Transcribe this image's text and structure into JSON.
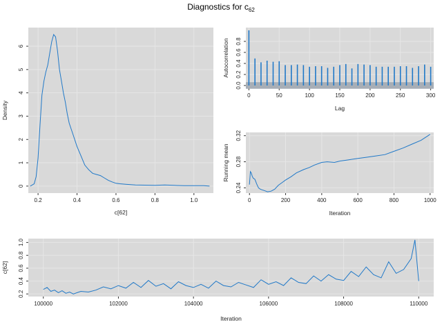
{
  "title": {
    "main": "Diagnostics for c",
    "subscript": "62"
  },
  "colors": {
    "series": "#1f78c8",
    "panel": "#d9d9d9",
    "grid": "#e6e6e6",
    "band": "#9aa3ad"
  },
  "chart_data": [
    {
      "id": "density",
      "type": "line",
      "xlabel": "c[62]",
      "ylabel": "Density",
      "xlim": [
        0.15,
        1.1
      ],
      "ylim": [
        -0.3,
        6.8
      ],
      "xticks": [
        0.2,
        0.4,
        0.6,
        0.8,
        1.0
      ],
      "xtick_labels": [
        "0.2",
        "0.4",
        "0.6",
        "0.8",
        "1.0"
      ],
      "yticks": [
        0,
        1,
        2,
        3,
        4,
        5,
        6
      ],
      "ytick_labels": [
        "0",
        "1",
        "2",
        "3",
        "4",
        "5",
        "6"
      ],
      "x": [
        0.16,
        0.18,
        0.19,
        0.2,
        0.21,
        0.22,
        0.23,
        0.24,
        0.25,
        0.26,
        0.27,
        0.28,
        0.29,
        0.3,
        0.31,
        0.32,
        0.33,
        0.34,
        0.35,
        0.36,
        0.38,
        0.4,
        0.42,
        0.44,
        0.46,
        0.48,
        0.5,
        0.52,
        0.54,
        0.56,
        0.58,
        0.6,
        0.62,
        0.65,
        0.7,
        0.75,
        0.8,
        0.85,
        0.9,
        0.95,
        1.0,
        1.05,
        1.08
      ],
      "y": [
        0.0,
        0.1,
        0.4,
        1.2,
        2.6,
        3.9,
        4.5,
        4.9,
        5.2,
        5.7,
        6.2,
        6.5,
        6.4,
        5.8,
        5.0,
        4.5,
        4.0,
        3.6,
        3.1,
        2.7,
        2.2,
        1.7,
        1.3,
        0.9,
        0.7,
        0.55,
        0.5,
        0.45,
        0.35,
        0.25,
        0.18,
        0.12,
        0.1,
        0.08,
        0.05,
        0.04,
        0.03,
        0.05,
        0.03,
        0.02,
        0.02,
        0.02,
        0.0
      ]
    },
    {
      "id": "autocorrelation",
      "type": "bar",
      "xlabel": "Lag",
      "ylabel": "Autocorrelation",
      "xlim": [
        -5,
        305
      ],
      "ylim": [
        -0.05,
        1.05
      ],
      "band": [
        -0.06,
        0.06
      ],
      "xticks": [
        0,
        50,
        100,
        150,
        200,
        250,
        300
      ],
      "xtick_labels": [
        "0",
        "50",
        "100",
        "150",
        "200",
        "250",
        "300"
      ],
      "yticks": [
        0.0,
        0.2,
        0.4,
        0.6,
        0.8
      ],
      "ytick_labels": [
        "0.0",
        "0.2",
        "0.4",
        "0.6",
        "0.8"
      ],
      "lags": [
        0,
        10,
        20,
        30,
        40,
        50,
        60,
        70,
        80,
        90,
        100,
        110,
        120,
        130,
        140,
        150,
        160,
        170,
        180,
        190,
        200,
        210,
        220,
        230,
        240,
        250,
        260,
        270,
        280,
        290,
        300
      ],
      "values": [
        1.0,
        0.49,
        0.42,
        0.45,
        0.43,
        0.44,
        0.37,
        0.37,
        0.38,
        0.37,
        0.34,
        0.35,
        0.35,
        0.32,
        0.34,
        0.37,
        0.39,
        0.31,
        0.39,
        0.38,
        0.37,
        0.34,
        0.34,
        0.34,
        0.34,
        0.35,
        0.35,
        0.32,
        0.35,
        0.38,
        0.34
      ]
    },
    {
      "id": "running-mean",
      "type": "line",
      "xlabel": "Iteration",
      "ylabel": "Running mean",
      "xlim": [
        -20,
        1020
      ],
      "ylim": [
        0.232,
        0.325
      ],
      "xticks": [
        0,
        200,
        400,
        600,
        800,
        1000
      ],
      "xtick_labels": [
        "0",
        "200",
        "400",
        "600",
        "800",
        "1000"
      ],
      "yticks": [
        0.24,
        0.28,
        0.32
      ],
      "ytick_labels": [
        "0.24",
        "0.28",
        "0.32"
      ],
      "x": [
        0,
        5,
        10,
        15,
        20,
        30,
        40,
        50,
        60,
        70,
        80,
        100,
        120,
        140,
        160,
        180,
        200,
        230,
        260,
        300,
        330,
        360,
        400,
        430,
        470,
        500,
        550,
        600,
        650,
        700,
        750,
        800,
        850,
        900,
        950,
        1000
      ],
      "y": [
        0.245,
        0.265,
        0.263,
        0.258,
        0.255,
        0.253,
        0.246,
        0.24,
        0.238,
        0.237,
        0.236,
        0.234,
        0.235,
        0.238,
        0.244,
        0.248,
        0.252,
        0.257,
        0.263,
        0.268,
        0.271,
        0.275,
        0.279,
        0.28,
        0.279,
        0.281,
        0.283,
        0.285,
        0.287,
        0.289,
        0.291,
        0.296,
        0.301,
        0.307,
        0.313,
        0.322
      ]
    },
    {
      "id": "trace",
      "type": "line",
      "xlabel": "Iteration",
      "ylabel": "c[62]",
      "xlim": [
        99600,
        110400
      ],
      "ylim": [
        0.16,
        1.06
      ],
      "xticks": [
        100000,
        102000,
        104000,
        106000,
        108000,
        110000
      ],
      "xtick_labels": [
        "100000",
        "102000",
        "104000",
        "106000",
        "108000",
        "110000"
      ],
      "yticks": [
        0.2,
        0.4,
        0.6,
        0.8,
        1.0
      ],
      "ytick_labels": [
        "0.2",
        "0.4",
        "0.6",
        "0.8",
        "1.0"
      ],
      "x": [
        100000,
        100100,
        100200,
        100300,
        100400,
        100500,
        100600,
        100700,
        100800,
        100900,
        101000,
        101200,
        101400,
        101600,
        101800,
        102000,
        102200,
        102400,
        102600,
        102800,
        103000,
        103200,
        103400,
        103600,
        103800,
        104000,
        104200,
        104400,
        104600,
        104800,
        105000,
        105200,
        105400,
        105600,
        105800,
        106000,
        106200,
        106400,
        106600,
        106800,
        107000,
        107200,
        107400,
        107600,
        107800,
        108000,
        108200,
        108400,
        108600,
        108800,
        109000,
        109200,
        109400,
        109600,
        109800,
        109900,
        110000
      ],
      "y": [
        0.27,
        0.3,
        0.24,
        0.26,
        0.22,
        0.25,
        0.21,
        0.23,
        0.2,
        0.22,
        0.24,
        0.23,
        0.26,
        0.31,
        0.28,
        0.33,
        0.29,
        0.38,
        0.3,
        0.41,
        0.32,
        0.36,
        0.28,
        0.39,
        0.33,
        0.3,
        0.35,
        0.29,
        0.4,
        0.33,
        0.31,
        0.38,
        0.34,
        0.3,
        0.42,
        0.35,
        0.39,
        0.33,
        0.45,
        0.38,
        0.36,
        0.48,
        0.4,
        0.5,
        0.43,
        0.41,
        0.55,
        0.47,
        0.62,
        0.5,
        0.45,
        0.7,
        0.52,
        0.58,
        0.75,
        1.04,
        0.4
      ]
    }
  ]
}
